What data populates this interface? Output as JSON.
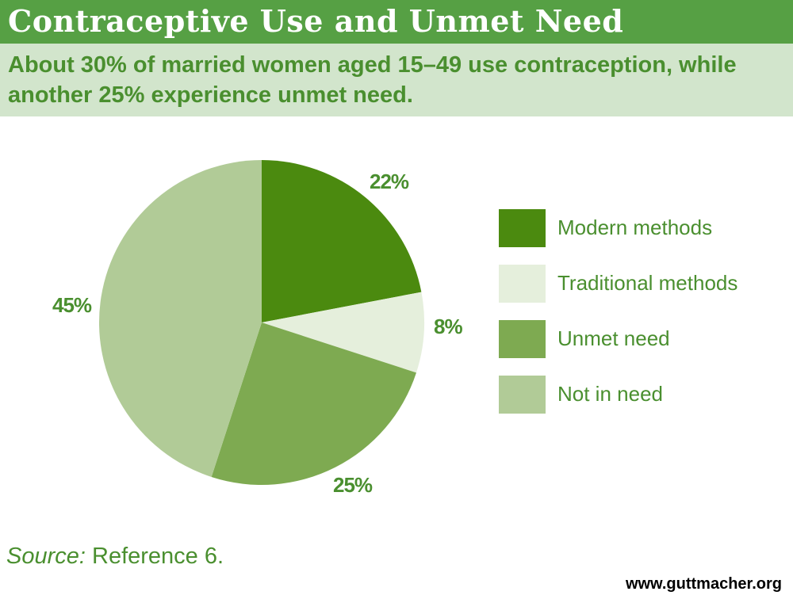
{
  "header": {
    "title": "Contraceptive Use and Unmet Need",
    "subtitle": "About 30% of married women aged 15–49 use contraception, while another 25% experience unmet need."
  },
  "chart_data": {
    "type": "pie",
    "title": "Contraceptive Use and Unmet Need",
    "start_angle": "12 o'clock",
    "direction": "clockwise",
    "slices": [
      {
        "name": "Modern methods",
        "value": 22,
        "label": "22%",
        "color": "#4b8a0f"
      },
      {
        "name": "Traditional methods",
        "value": 8,
        "label": "8%",
        "color": "#e5efdc"
      },
      {
        "name": "Unmet need",
        "value": 25,
        "label": "25%",
        "color": "#7eaa51"
      },
      {
        "name": "Not in need",
        "value": 45,
        "label": "45%",
        "color": "#b1cb97"
      }
    ]
  },
  "legend": {
    "items": [
      {
        "label": "Modern methods",
        "color": "#4b8a0f"
      },
      {
        "label": "Traditional methods",
        "color": "#e5efdc"
      },
      {
        "label": "Unmet need",
        "color": "#7eaa51"
      },
      {
        "label": "Not in need",
        "color": "#b1cb97"
      }
    ]
  },
  "footer": {
    "source_prefix": "Source:",
    "source_text": " Reference 6.",
    "website": "www.guttmacher.org"
  }
}
